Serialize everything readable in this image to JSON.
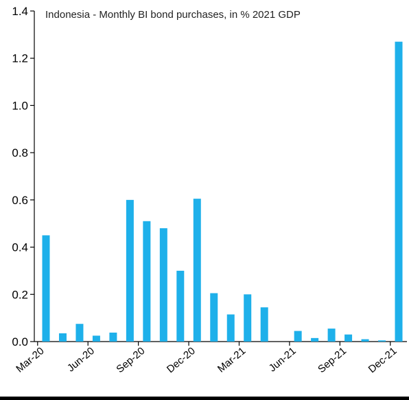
{
  "chart_data": {
    "type": "bar",
    "title": "Indonesia - Monthly BI bond purchases, in % 2021 GDP",
    "xlabel": "",
    "ylabel": "",
    "ylim": [
      0,
      1.4
    ],
    "y_ticks": [
      "0.0",
      "0.2",
      "0.4",
      "0.6",
      "0.8",
      "1.0",
      "1.2",
      "1.4"
    ],
    "categories": [
      "Mar-20",
      "Apr-20",
      "May-20",
      "Jun-20",
      "Jul-20",
      "Aug-20",
      "Sep-20",
      "Oct-20",
      "Nov-20",
      "Dec-20",
      "Jan-21",
      "Feb-21",
      "Mar-21",
      "Apr-21",
      "May-21",
      "Jun-21",
      "Jul-21",
      "Aug-21",
      "Sep-21",
      "Oct-21",
      "Nov-21",
      "Dec-21"
    ],
    "x_tick_labels": [
      "Mar-20",
      "Jun-20",
      "Sep-20",
      "Dec-20",
      "Mar-21",
      "Jun-21",
      "Sep-21",
      "Dec-21"
    ],
    "values": [
      0.45,
      0.035,
      0.075,
      0.025,
      0.038,
      0.6,
      0.51,
      0.48,
      0.3,
      0.605,
      0.205,
      0.115,
      0.2,
      0.145,
      0.0,
      0.045,
      0.015,
      0.055,
      0.03,
      0.01,
      0.005,
      1.27
    ],
    "bar_color": "#1EB0EA",
    "grid": false,
    "legend": "none"
  }
}
